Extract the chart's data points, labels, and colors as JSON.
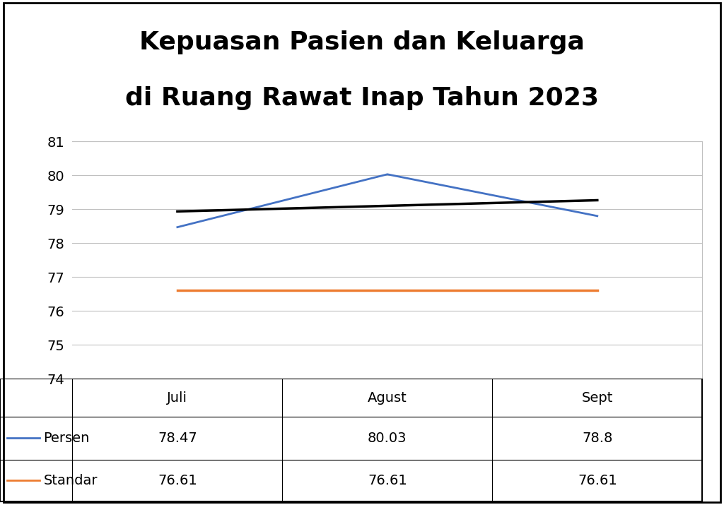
{
  "title_line1": "Kepuasan Pasien dan Keluarga",
  "title_line2": "di Ruang Rawat Inap Tahun 2023",
  "months": [
    "Juli",
    "Agust",
    "Sept"
  ],
  "persen": [
    78.47,
    80.03,
    78.8
  ],
  "standar": [
    76.61,
    76.61,
    76.61
  ],
  "ylim": [
    74,
    81
  ],
  "yticks": [
    74,
    75,
    76,
    77,
    78,
    79,
    80,
    81
  ],
  "color_persen": "#4472C4",
  "color_standar": "#ED7D31",
  "color_trend": "#000000",
  "bg_color": "#FFFFFF",
  "title_fontsize": 26,
  "tick_fontsize": 14,
  "table_fontsize": 14,
  "table_header": [
    "",
    "Juli",
    "Agust",
    "Sept"
  ],
  "table_row1_label": "Persen",
  "table_row1_vals": [
    "78.47",
    "80.03",
    "78.8"
  ],
  "table_row2_label": "Standar",
  "table_row2_vals": [
    "76.61",
    "76.61",
    "76.61"
  ]
}
